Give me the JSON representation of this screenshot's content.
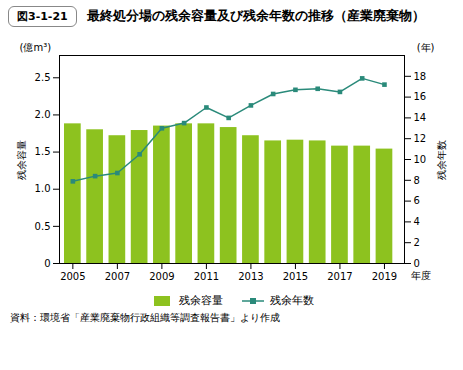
{
  "chart_data": {
    "type": "bar",
    "title": "最終処分場の残余容量及び残余年数の推移（産業廃棄物）",
    "annotations": [
      "図3-1-21",
      "(億m³)",
      "(年)",
      "資料：環境省「産業廃棄物行政組織等調査報告書」より作成"
    ],
    "xlabel": "年度",
    "ylabel": "残余容量",
    "y2label": "残余年数",
    "x": [
      2005,
      2006,
      2007,
      2008,
      2009,
      2010,
      2011,
      2012,
      2013,
      2014,
      2015,
      2016,
      2017,
      2018,
      2019
    ],
    "series": [
      {
        "name": "残余容量",
        "type": "bar",
        "color": "#8dc21f",
        "values": [
          1.88,
          1.8,
          1.72,
          1.79,
          1.85,
          1.88,
          1.88,
          1.83,
          1.72,
          1.65,
          1.66,
          1.65,
          1.58,
          1.58,
          1.54
        ]
      },
      {
        "name": "残余年数",
        "type": "line",
        "color": "#2a8a7a",
        "marker": "square",
        "axis": "y2",
        "values": [
          7.9,
          8.4,
          8.7,
          10.5,
          13.0,
          13.5,
          15.0,
          14.0,
          15.2,
          16.3,
          16.7,
          16.8,
          16.5,
          17.8,
          17.2
        ]
      }
    ],
    "xlim": [
      2004.4,
      2019.9
    ],
    "xticks": [
      2005,
      2007,
      2009,
      2011,
      2013,
      2015,
      2017,
      2019
    ],
    "ylim": [
      0,
      2.8
    ],
    "yticks": [
      0,
      0.5,
      {
        "value": 1.0,
        "label": "1.0"
      },
      1.5,
      {
        "value": 2.0,
        "label": "2.0"
      },
      2.5
    ],
    "y2lim": [
      0,
      20
    ],
    "y2ticks": [
      0,
      2,
      4,
      6,
      8,
      10,
      12,
      14,
      16,
      18
    ],
    "legend": "bottom",
    "grid": false
  }
}
